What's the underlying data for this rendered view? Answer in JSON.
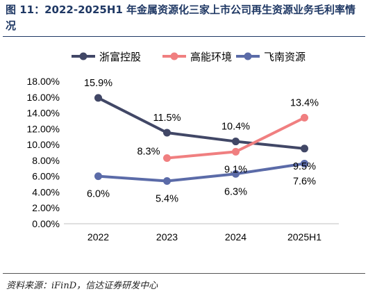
{
  "title": "图 11：2022-2025H1 年金属资源化三家上市公司再生资源业务毛利率情况",
  "source": "资料来源：iFinD，信达证券研发中心",
  "chart_data": {
    "type": "line",
    "categories": [
      "2022",
      "2023",
      "2024",
      "2025H1"
    ],
    "ylim": [
      0,
      18
    ],
    "yticks": [
      "0.00%",
      "2.00%",
      "4.00%",
      "6.00%",
      "8.00%",
      "10.00%",
      "12.00%",
      "14.00%",
      "16.00%",
      "18.00%"
    ],
    "legend_position": "top",
    "grid": false,
    "series": [
      {
        "name": "浙富控股",
        "color": "#414766",
        "values": [
          15.9,
          11.5,
          10.4,
          9.5
        ],
        "labels": [
          "15.9%",
          "11.5%",
          "10.4%",
          "9.5%"
        ]
      },
      {
        "name": "高能环境",
        "color": "#f07f80",
        "values": [
          null,
          8.3,
          9.1,
          13.4
        ],
        "labels": [
          "",
          "8.3%",
          "9.1%",
          "13.4%"
        ]
      },
      {
        "name": "飞南资源",
        "color": "#5b6ba8",
        "values": [
          6.0,
          5.4,
          6.3,
          7.6
        ],
        "labels": [
          "6.0%",
          "5.4%",
          "6.3%",
          "7.6%"
        ]
      }
    ]
  }
}
